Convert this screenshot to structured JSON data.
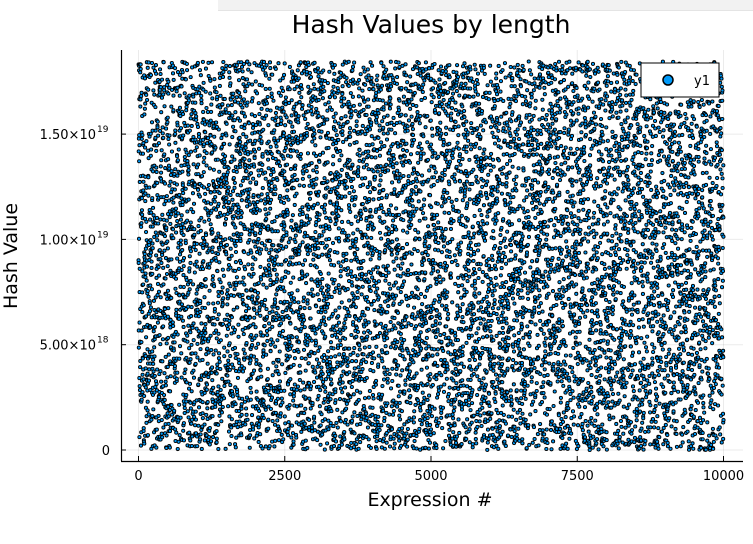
{
  "chart_data": {
    "type": "scatter",
    "title": "Hash Values by length",
    "xlabel": "Expression #",
    "ylabel": "Hash Value",
    "xlim": [
      0,
      10000
    ],
    "ylim": [
      0,
      1.8446744073709552e+19
    ],
    "x_ticks": [
      {
        "value": 0,
        "label": "0"
      },
      {
        "value": 2500,
        "label": "2500"
      },
      {
        "value": 5000,
        "label": "5000"
      },
      {
        "value": 7500,
        "label": "7500"
      },
      {
        "value": 10000,
        "label": "10000"
      }
    ],
    "y_ticks": [
      {
        "value": 0,
        "mantissa": "0",
        "exponent": ""
      },
      {
        "value": 5e+18,
        "mantissa": "5.00×10",
        "exponent": "18"
      },
      {
        "value": 1e+19,
        "mantissa": "1.00×10",
        "exponent": "19"
      },
      {
        "value": 1.5e+19,
        "mantissa": "1.50×10",
        "exponent": "19"
      }
    ],
    "grid": true,
    "legend": {
      "position": "top-right"
    },
    "series": [
      {
        "name": "y1",
        "color": "#009af9",
        "marker_stroke": "#000000",
        "n_points": 10000,
        "distribution": "uniform random hash values"
      }
    ]
  }
}
